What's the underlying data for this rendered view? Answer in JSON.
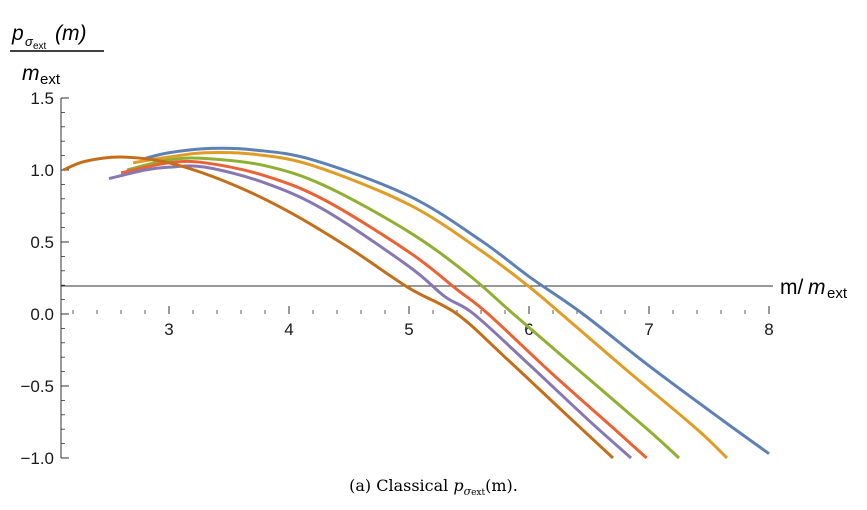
{
  "chart_data": {
    "type": "line",
    "ylabel": {
      "numerator_base": "p",
      "numerator_sub": "σ",
      "numerator_subsub": "ext",
      "numerator_arg": "(m)",
      "denominator_base": "m",
      "denominator_sub": "ext"
    },
    "xlabel": {
      "prefix": "m/",
      "base": "m",
      "sub": "ext"
    },
    "xlim": [
      2.1,
      8.0
    ],
    "ylim": [
      -1.0,
      1.5
    ],
    "x_ticks": [
      "3",
      "4",
      "5",
      "6",
      "7",
      "8"
    ],
    "y_ticks": [
      "1.5",
      "1.0",
      "0.5",
      "0.0",
      "−0.5",
      "−1.0"
    ],
    "grid": false,
    "series": [
      {
        "color": "#5e81b5",
        "points": [
          [
            2.8,
            1.08
          ],
          [
            3.0,
            1.12
          ],
          [
            3.35,
            1.15
          ],
          [
            3.7,
            1.14
          ],
          [
            4.2,
            1.07
          ],
          [
            5.0,
            0.82
          ],
          [
            5.6,
            0.51
          ],
          [
            6.0,
            0.26
          ],
          [
            6.45,
            0.0
          ],
          [
            7.0,
            -0.36
          ],
          [
            7.6,
            -0.73
          ],
          [
            8.0,
            -0.97
          ]
        ]
      },
      {
        "color": "#e19c24",
        "points": [
          [
            2.7,
            1.05
          ],
          [
            3.0,
            1.09
          ],
          [
            3.3,
            1.12
          ],
          [
            3.7,
            1.11
          ],
          [
            4.2,
            1.03
          ],
          [
            5.0,
            0.76
          ],
          [
            5.6,
            0.44
          ],
          [
            6.0,
            0.19
          ],
          [
            6.27,
            0.0
          ],
          [
            6.8,
            -0.38
          ],
          [
            7.4,
            -0.8
          ],
          [
            7.65,
            -1.0
          ]
        ]
      },
      {
        "color": "#8fb032",
        "points": [
          [
            2.65,
            1.0
          ],
          [
            3.0,
            1.07
          ],
          [
            3.3,
            1.08
          ],
          [
            3.8,
            1.03
          ],
          [
            4.3,
            0.89
          ],
          [
            5.0,
            0.57
          ],
          [
            5.5,
            0.27
          ],
          [
            5.87,
            0.0
          ],
          [
            6.4,
            -0.38
          ],
          [
            7.0,
            -0.81
          ],
          [
            7.25,
            -1.0
          ]
        ]
      },
      {
        "color": "#eb6235",
        "points": [
          [
            2.6,
            0.98
          ],
          [
            3.0,
            1.05
          ],
          [
            3.3,
            1.05
          ],
          [
            3.8,
            0.96
          ],
          [
            4.3,
            0.79
          ],
          [
            5.0,
            0.43
          ],
          [
            5.4,
            0.17
          ],
          [
            5.66,
            0.0
          ],
          [
            6.2,
            -0.42
          ],
          [
            6.7,
            -0.79
          ],
          [
            6.98,
            -1.0
          ]
        ]
      },
      {
        "color": "#8778b3",
        "points": [
          [
            2.5,
            0.94
          ],
          [
            2.8,
            1.0
          ],
          [
            3.0,
            1.02
          ],
          [
            3.3,
            1.02
          ],
          [
            3.8,
            0.91
          ],
          [
            4.3,
            0.72
          ],
          [
            5.0,
            0.33
          ],
          [
            5.3,
            0.12
          ],
          [
            5.54,
            0.0
          ],
          [
            6.0,
            -0.35
          ],
          [
            6.5,
            -0.74
          ],
          [
            6.85,
            -1.0
          ]
        ]
      },
      {
        "color": "#c56e1a",
        "points": [
          [
            2.12,
            1.0
          ],
          [
            2.3,
            1.06
          ],
          [
            2.6,
            1.09
          ],
          [
            3.0,
            1.05
          ],
          [
            3.5,
            0.91
          ],
          [
            4.0,
            0.71
          ],
          [
            4.5,
            0.46
          ],
          [
            5.0,
            0.18
          ],
          [
            5.4,
            0.0
          ],
          [
            5.8,
            -0.3
          ],
          [
            6.3,
            -0.69
          ],
          [
            6.7,
            -1.0
          ]
        ]
      }
    ]
  },
  "caption": {
    "prefix": "(a)  Classical ",
    "base": "p",
    "sub": "σ",
    "subsub": "ext",
    "suffix": "(m)."
  }
}
